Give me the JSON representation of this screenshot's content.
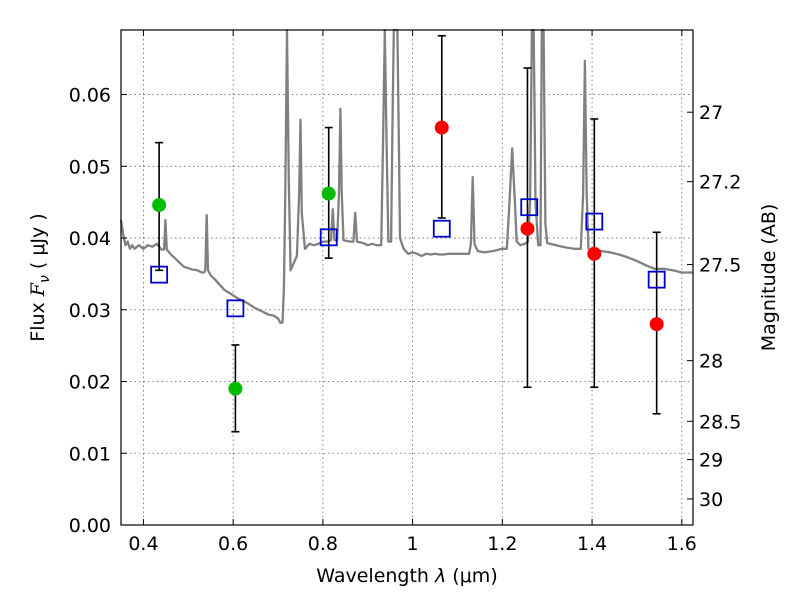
{
  "chart_data": {
    "type": "scatter",
    "xlabel": "Wavelength  λ (μm)",
    "ylabel": "Flux  Fν  ( μJy )",
    "y2label": "Magnitude (AB)",
    "xlim": [
      0.35,
      1.625
    ],
    "ylim": [
      0.0,
      0.069
    ],
    "grid": true,
    "x_ticks": [
      {
        "value": 0.4,
        "label": "0.4"
      },
      {
        "value": 0.6,
        "label": "0.6"
      },
      {
        "value": 0.8,
        "label": "0.8"
      },
      {
        "value": 1.0,
        "label": "1"
      },
      {
        "value": 1.2,
        "label": "1.2"
      },
      {
        "value": 1.4,
        "label": "1.4"
      },
      {
        "value": 1.6,
        "label": "1.6"
      }
    ],
    "y_ticks": [
      {
        "value": 0.0,
        "label": "0.00"
      },
      {
        "value": 0.01,
        "label": "0.01"
      },
      {
        "value": 0.02,
        "label": "0.02"
      },
      {
        "value": 0.03,
        "label": "0.03"
      },
      {
        "value": 0.04,
        "label": "0.04"
      },
      {
        "value": 0.05,
        "label": "0.05"
      },
      {
        "value": 0.06,
        "label": "0.06"
      }
    ],
    "mag_ticks": [
      {
        "label": "27",
        "mag": 27.0
      },
      {
        "label": "27.2",
        "mag": 27.2
      },
      {
        "label": "27.5",
        "mag": 27.5
      },
      {
        "label": "28",
        "mag": 28.0
      },
      {
        "label": "28.5",
        "mag": 28.5
      },
      {
        "label": "29",
        "mag": 29.0
      },
      {
        "label": "30",
        "mag": 30.0
      }
    ],
    "colors": {
      "spectrum": "#808080",
      "green": "#00bb00",
      "red": "#ff0000",
      "model": "#0000cc",
      "errorbar": "#000000"
    },
    "spectrum": [
      [
        0.35,
        0.0425
      ],
      [
        0.355,
        0.0405
      ],
      [
        0.36,
        0.039
      ],
      [
        0.365,
        0.0395
      ],
      [
        0.37,
        0.0385
      ],
      [
        0.375,
        0.039
      ],
      [
        0.38,
        0.0385
      ],
      [
        0.39,
        0.039
      ],
      [
        0.4,
        0.0385
      ],
      [
        0.41,
        0.039
      ],
      [
        0.42,
        0.0388
      ],
      [
        0.43,
        0.0392
      ],
      [
        0.44,
        0.0384
      ],
      [
        0.446,
        0.0384
      ],
      [
        0.449,
        0.0425
      ],
      [
        0.452,
        0.0384
      ],
      [
        0.46,
        0.0378
      ],
      [
        0.47,
        0.0372
      ],
      [
        0.48,
        0.0366
      ],
      [
        0.49,
        0.036
      ],
      [
        0.5,
        0.0358
      ],
      [
        0.51,
        0.0356
      ],
      [
        0.52,
        0.0355
      ],
      [
        0.53,
        0.0352
      ],
      [
        0.535,
        0.0352
      ],
      [
        0.538,
        0.0355
      ],
      [
        0.541,
        0.0432
      ],
      [
        0.544,
        0.0355
      ],
      [
        0.55,
        0.0348
      ],
      [
        0.56,
        0.0342
      ],
      [
        0.57,
        0.0335
      ],
      [
        0.58,
        0.0328
      ],
      [
        0.59,
        0.0324
      ],
      [
        0.6,
        0.032
      ],
      [
        0.61,
        0.0316
      ],
      [
        0.62,
        0.0313
      ],
      [
        0.63,
        0.031
      ],
      [
        0.64,
        0.0306
      ],
      [
        0.65,
        0.0302
      ],
      [
        0.66,
        0.0299
      ],
      [
        0.67,
        0.0296
      ],
      [
        0.68,
        0.0293
      ],
      [
        0.69,
        0.0292
      ],
      [
        0.7,
        0.0288
      ],
      [
        0.705,
        0.0282
      ],
      [
        0.71,
        0.0282
      ],
      [
        0.713,
        0.033
      ],
      [
        0.716,
        0.045
      ],
      [
        0.72,
        0.069
      ],
      [
        0.724,
        0.048
      ],
      [
        0.728,
        0.0355
      ],
      [
        0.735,
        0.0365
      ],
      [
        0.742,
        0.0375
      ],
      [
        0.747,
        0.046
      ],
      [
        0.75,
        0.0565
      ],
      [
        0.753,
        0.0435
      ],
      [
        0.76,
        0.0385
      ],
      [
        0.77,
        0.0392
      ],
      [
        0.78,
        0.039
      ],
      [
        0.79,
        0.0392
      ],
      [
        0.8,
        0.0395
      ],
      [
        0.81,
        0.0395
      ],
      [
        0.818,
        0.0397
      ],
      [
        0.822,
        0.044
      ],
      [
        0.826,
        0.0397
      ],
      [
        0.832,
        0.0397
      ],
      [
        0.836,
        0.0465
      ],
      [
        0.839,
        0.058
      ],
      [
        0.842,
        0.0465
      ],
      [
        0.846,
        0.0397
      ],
      [
        0.86,
        0.0395
      ],
      [
        0.868,
        0.0395
      ],
      [
        0.872,
        0.0435
      ],
      [
        0.876,
        0.0395
      ],
      [
        0.89,
        0.0393
      ],
      [
        0.9,
        0.039
      ],
      [
        0.91,
        0.0392
      ],
      [
        0.92,
        0.039
      ],
      [
        0.93,
        0.039
      ],
      [
        0.934,
        0.053
      ],
      [
        0.938,
        0.069
      ],
      [
        0.942,
        0.053
      ],
      [
        0.946,
        0.0395
      ],
      [
        0.952,
        0.0395
      ],
      [
        0.955,
        0.055
      ],
      [
        0.958,
        0.069
      ],
      [
        0.962,
        0.069
      ],
      [
        0.966,
        0.069
      ],
      [
        0.969,
        0.055
      ],
      [
        0.972,
        0.04
      ],
      [
        0.98,
        0.0385
      ],
      [
        0.99,
        0.0378
      ],
      [
        1.0,
        0.038
      ],
      [
        1.01,
        0.0378
      ],
      [
        1.02,
        0.0375
      ],
      [
        1.03,
        0.0378
      ],
      [
        1.04,
        0.0377
      ],
      [
        1.05,
        0.0378
      ],
      [
        1.06,
        0.0377
      ],
      [
        1.07,
        0.0377
      ],
      [
        1.08,
        0.0378
      ],
      [
        1.09,
        0.0378
      ],
      [
        1.1,
        0.0378
      ],
      [
        1.11,
        0.0378
      ],
      [
        1.12,
        0.0378
      ],
      [
        1.126,
        0.0378
      ],
      [
        1.13,
        0.0392
      ],
      [
        1.134,
        0.0485
      ],
      [
        1.138,
        0.0392
      ],
      [
        1.145,
        0.0382
      ],
      [
        1.16,
        0.038
      ],
      [
        1.18,
        0.0382
      ],
      [
        1.2,
        0.0385
      ],
      [
        1.21,
        0.0385
      ],
      [
        1.215,
        0.044
      ],
      [
        1.222,
        0.0525
      ],
      [
        1.228,
        0.045
      ],
      [
        1.232,
        0.0395
      ],
      [
        1.24,
        0.039
      ],
      [
        1.25,
        0.0392
      ],
      [
        1.257,
        0.0395
      ],
      [
        1.262,
        0.045
      ],
      [
        1.266,
        0.069
      ],
      [
        1.27,
        0.069
      ],
      [
        1.274,
        0.045
      ],
      [
        1.28,
        0.039
      ],
      [
        1.285,
        0.039
      ],
      [
        1.288,
        0.069
      ],
      [
        1.292,
        0.069
      ],
      [
        1.296,
        0.042
      ],
      [
        1.3,
        0.0393
      ],
      [
        1.32,
        0.039
      ],
      [
        1.34,
        0.0387
      ],
      [
        1.36,
        0.0385
      ],
      [
        1.375,
        0.0385
      ],
      [
        1.38,
        0.046
      ],
      [
        1.384,
        0.0647
      ],
      [
        1.388,
        0.046
      ],
      [
        1.392,
        0.0385
      ],
      [
        1.4,
        0.0383
      ],
      [
        1.42,
        0.0382
      ],
      [
        1.44,
        0.038
      ],
      [
        1.46,
        0.0377
      ],
      [
        1.48,
        0.0373
      ],
      [
        1.5,
        0.0368
      ],
      [
        1.52,
        0.0362
      ],
      [
        1.54,
        0.0357
      ],
      [
        1.56,
        0.0357
      ],
      [
        1.58,
        0.0355
      ],
      [
        1.6,
        0.0352
      ],
      [
        1.625,
        0.0352
      ]
    ],
    "green_points": [
      {
        "x": 0.435,
        "y": 0.0446,
        "yerr_low": 0.0355,
        "yerr_high": 0.0533
      },
      {
        "x": 0.605,
        "y": 0.019,
        "yerr_low": 0.013,
        "yerr_high": 0.0251
      },
      {
        "x": 0.813,
        "y": 0.0462,
        "yerr_low": 0.0372,
        "yerr_high": 0.0554
      }
    ],
    "red_points": [
      {
        "x": 1.065,
        "y": 0.0554,
        "yerr_low": 0.0428,
        "yerr_high": 0.0682
      },
      {
        "x": 1.256,
        "y": 0.0413,
        "yerr_low": 0.0192,
        "yerr_high": 0.0637
      },
      {
        "x": 1.405,
        "y": 0.0378,
        "yerr_low": 0.0192,
        "yerr_high": 0.0566
      },
      {
        "x": 1.544,
        "y": 0.028,
        "yerr_low": 0.0155,
        "yerr_high": 0.0408
      }
    ],
    "model_points": [
      {
        "x": 0.435,
        "y": 0.0349
      },
      {
        "x": 0.605,
        "y": 0.0302
      },
      {
        "x": 0.813,
        "y": 0.0401
      },
      {
        "x": 1.065,
        "y": 0.0413
      },
      {
        "x": 1.26,
        "y": 0.0443
      },
      {
        "x": 1.405,
        "y": 0.0423
      },
      {
        "x": 1.544,
        "y": 0.0342
      }
    ]
  }
}
